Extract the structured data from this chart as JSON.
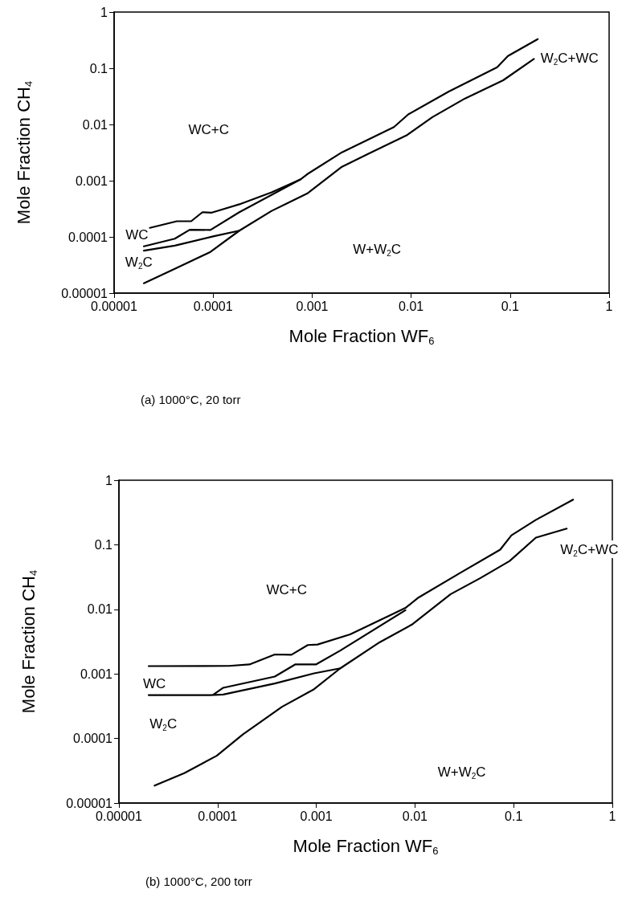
{
  "chart_data": [
    {
      "type": "line",
      "xlabel": "Mole Fraction WF$_{6}$",
      "ylabel": "Mole Fraction CH$_{4}$",
      "log": "xy",
      "marker": "none",
      "line_style": "solid",
      "xlim": [
        1e-05,
        1
      ],
      "xticks": [
        {
          "value": 1e-05,
          "label": "0.00001"
        },
        0.0001,
        0.001,
        0.01,
        0.1,
        1
      ],
      "ylim": [
        1e-05,
        1
      ],
      "yticks": [
        {
          "value": 1e-05,
          "label": "0.00001"
        },
        0.0001,
        0.001,
        0.01,
        0.1,
        1
      ],
      "series": [
        {
          "color": "#000000",
          "x": [
            2.3e-05,
            4.3e-05,
            6e-05,
            7.8e-05,
            9.7e-05,
            0.000184,
            0.00039,
            0.00076,
            0.00089,
            0.002,
            0.0067,
            0.0094,
            0.024,
            0.074,
            0.095,
            0.19
          ],
          "values": [
            0.000145,
            0.00019,
            0.00019,
            0.000275,
            0.00027,
            0.00038,
            0.00062,
            0.00105,
            0.0013,
            0.0032,
            0.009,
            0.0152,
            0.0385,
            0.104,
            0.165,
            0.33
          ]
        },
        {
          "color": "#000000",
          "x": [
            2e-05,
            4.1e-05,
            5.8e-05,
            9.4e-05,
            0.000184,
            0.00076
          ],
          "values": [
            6.8e-05,
            9.3e-05,
            0.000134,
            0.000133,
            0.000275,
            0.00105
          ]
        },
        {
          "color": "#000000",
          "x": [
            2e-05,
            4.1e-05,
            0.0001,
            0.000184
          ],
          "values": [
            5.7e-05,
            7e-05,
            0.000102,
            0.000129
          ]
        },
        {
          "color": "#000000",
          "x": [
            2e-05,
            4.1e-05,
            9.4e-05,
            0.000184,
            0.00039,
            0.00089,
            0.002,
            0.0037,
            0.009,
            0.0164,
            0.035,
            0.085,
            0.174
          ],
          "values": [
            1.5e-05,
            2.7e-05,
            5.4e-05,
            0.000129,
            0.00029,
            0.00059,
            0.00177,
            0.003,
            0.0064,
            0.0135,
            0.029,
            0.061,
            0.147
          ]
        }
      ],
      "annotations": [
        "WC+C",
        "WC",
        "W$_{2}$C",
        "W+W$_{2}$C",
        "W$_{2}$C+WC",
        "(a) 1000°C, 20 torr"
      ]
    },
    {
      "type": "line",
      "xlabel": "Mole Fraction WF$_{6}$",
      "ylabel": "Mole Fraction CH$_{4}$",
      "log": "xy",
      "marker": "none",
      "line_style": "solid",
      "xlim": [
        1e-05,
        1
      ],
      "xticks": [
        {
          "value": 1e-05,
          "label": "0.00001"
        },
        0.0001,
        0.001,
        0.01,
        0.1,
        1
      ],
      "ylim": [
        1e-05,
        1
      ],
      "yticks": [
        {
          "value": 1e-05,
          "label": "0.00001"
        },
        0.0001,
        0.001,
        0.01,
        0.1,
        1
      ],
      "series": [
        {
          "color": "#000000",
          "x": [
            2e-05,
            0.00013,
            0.00021,
            0.00038,
            0.00056,
            0.00082,
            0.00103,
            0.0022,
            0.008,
            0.0109,
            0.029,
            0.073,
            0.095,
            0.168,
            0.4
          ],
          "values": [
            0.00132,
            0.00133,
            0.0014,
            0.002,
            0.00198,
            0.0028,
            0.00285,
            0.0041,
            0.0105,
            0.0153,
            0.037,
            0.084,
            0.14,
            0.243,
            0.5
          ]
        },
        {
          "color": "#000000",
          "x": [
            9.1e-05,
            0.000114,
            0.00038,
            0.00061,
            0.00099,
            0.00175,
            0.008
          ],
          "values": [
            0.00048,
            0.00061,
            0.00091,
            0.0014,
            0.0014,
            0.0023,
            0.0097
          ]
        },
        {
          "color": "#000000",
          "x": [
            2e-05,
            8.4e-05,
            0.000114,
            0.00038,
            0.00095,
            0.00175
          ],
          "values": [
            0.00047,
            0.00047,
            0.00048,
            0.00071,
            0.00102,
            0.00122
          ]
        },
        {
          "color": "#000000",
          "x": [
            2.3e-05,
            4.6e-05,
            9.8e-05,
            0.00018,
            0.00045,
            0.00095,
            0.00175,
            0.0044,
            0.0093,
            0.023,
            0.046,
            0.091,
            0.168,
            0.345
          ],
          "values": [
            1.86e-05,
            2.9e-05,
            5.4e-05,
            0.000115,
            0.00031,
            0.00058,
            0.00122,
            0.0031,
            0.0058,
            0.0172,
            0.0305,
            0.056,
            0.129,
            0.178
          ]
        }
      ],
      "annotations": [
        "WC+C",
        "WC",
        "W$_{2}$C",
        "W+W$_{2}$C",
        "W$_{2}$C+WC",
        "(b) 1000°C, 200 torr"
      ]
    }
  ]
}
